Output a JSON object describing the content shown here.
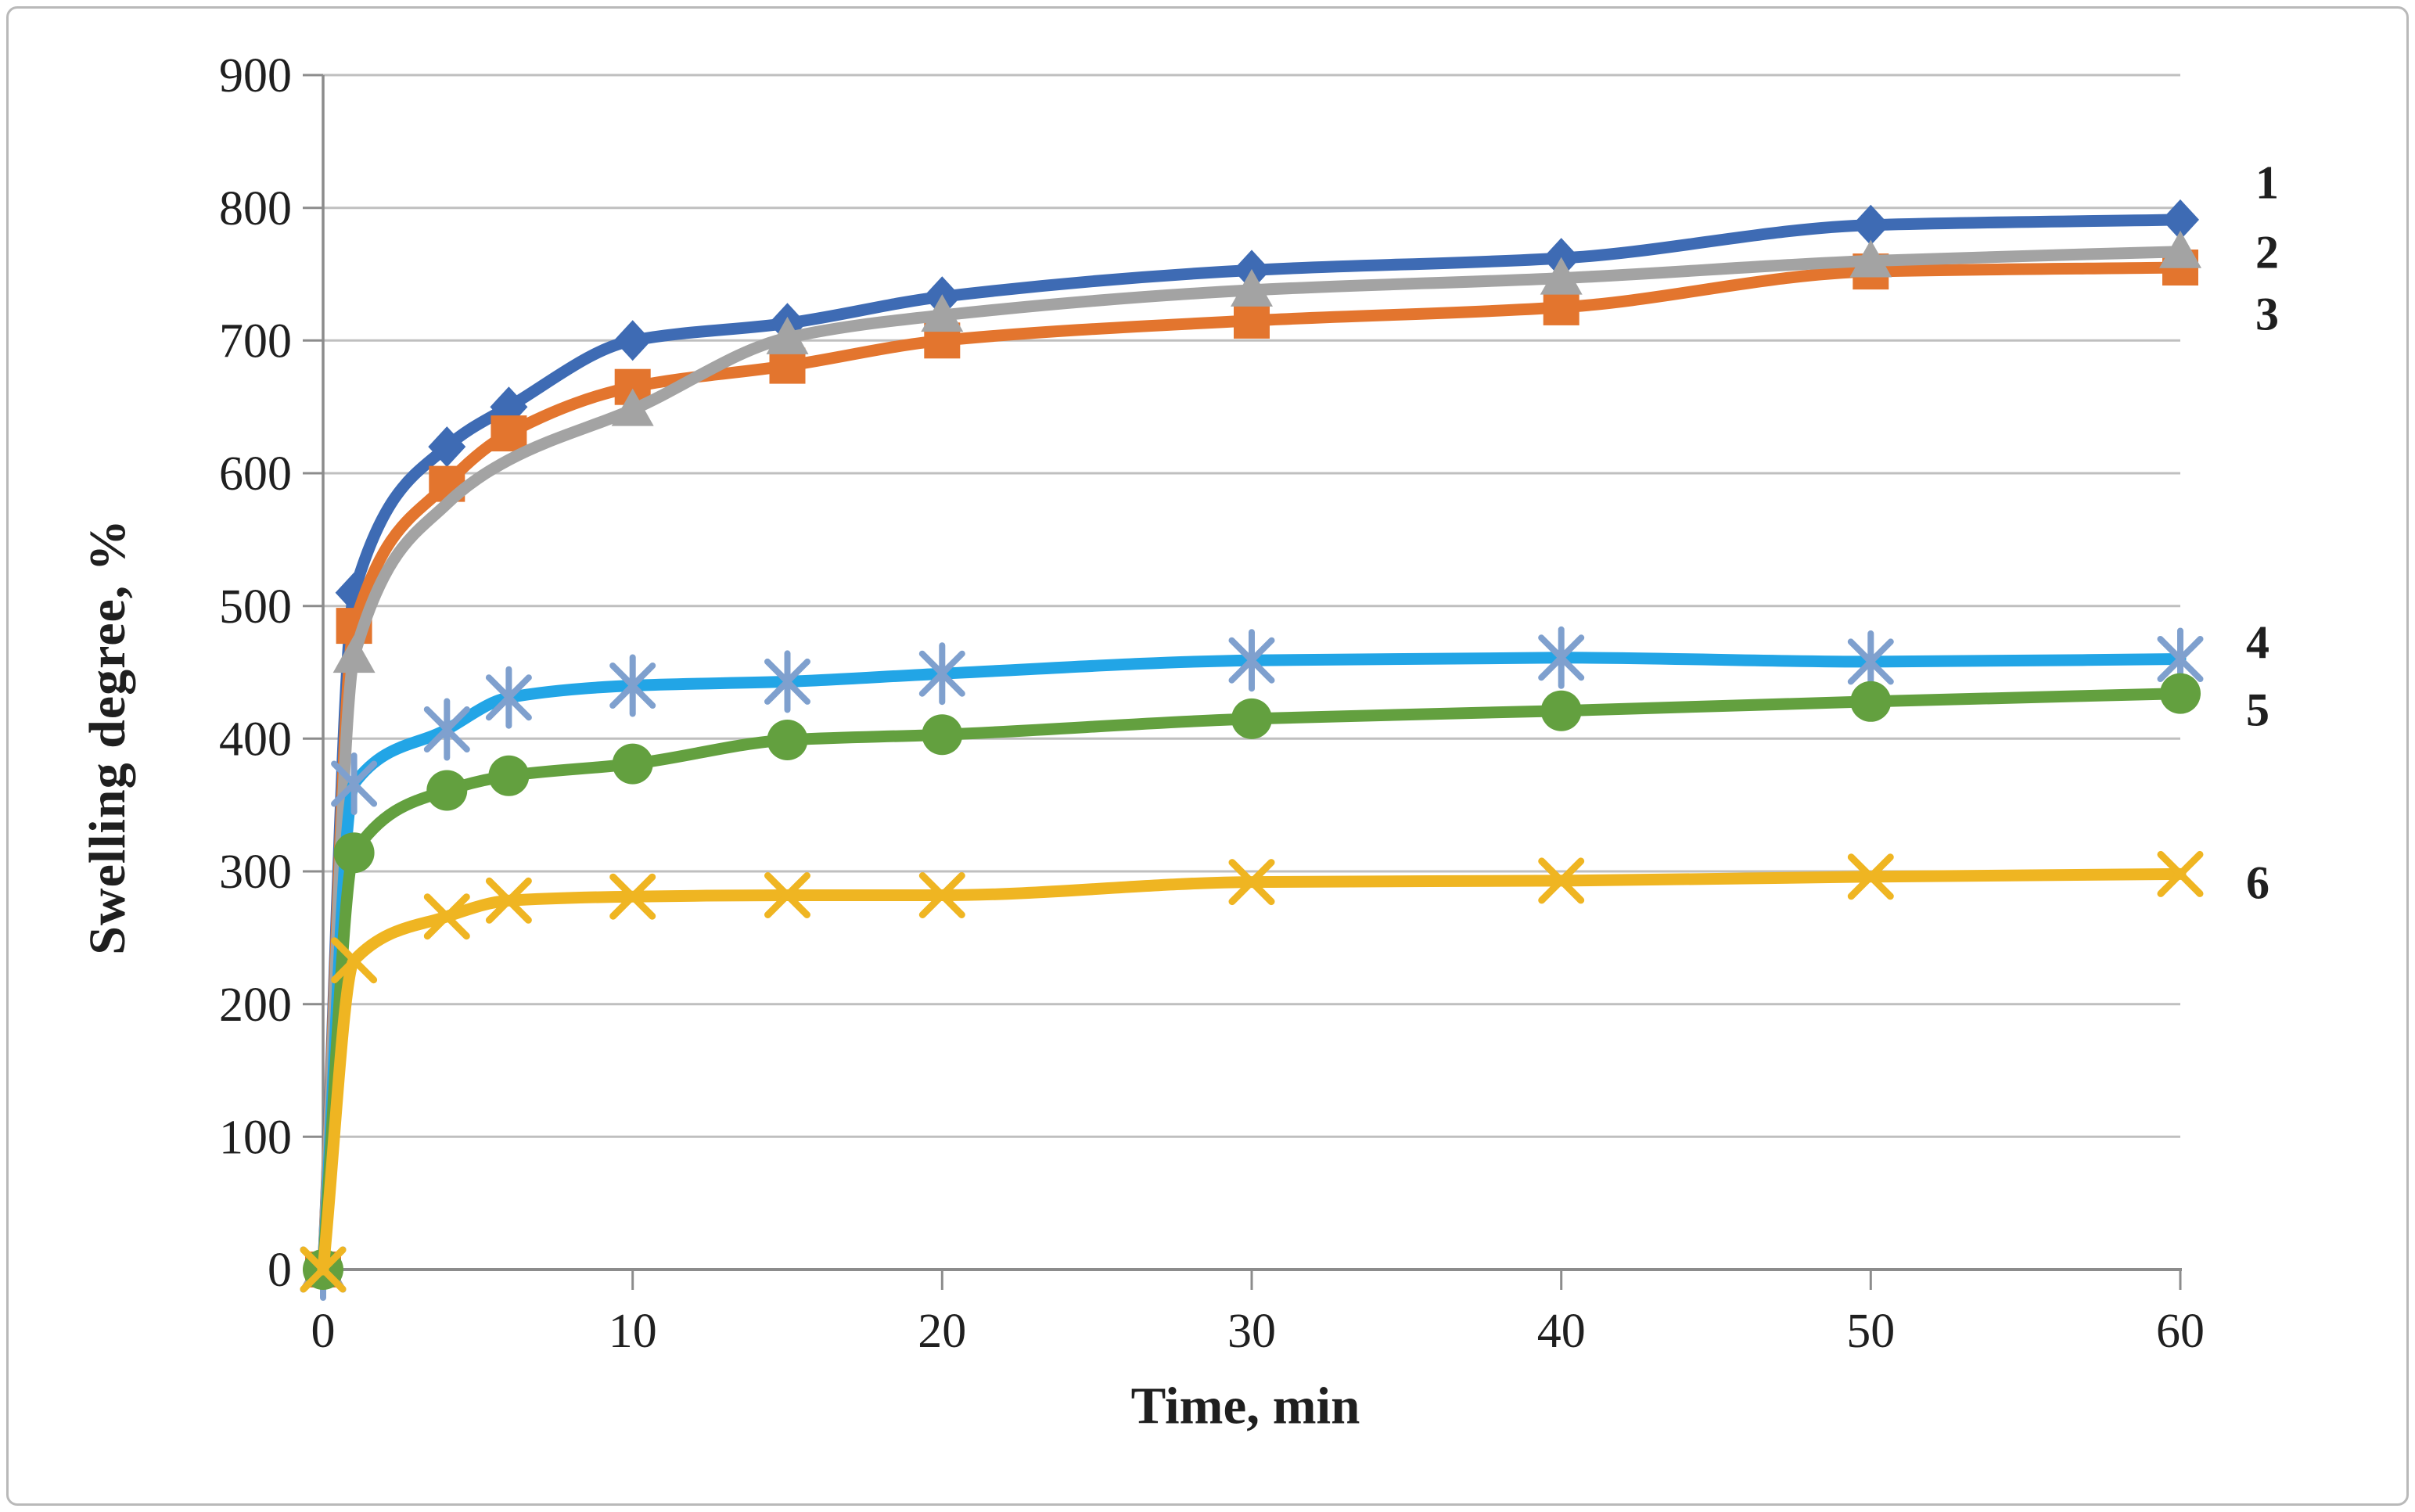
{
  "figure": {
    "background": "#ffffff",
    "border_color": "#b9b9b9"
  },
  "chart_data": {
    "type": "line",
    "title": "",
    "xlabel": "Time, min",
    "ylabel": "Swelling degree, %",
    "xlim": [
      0,
      60
    ],
    "ylim": [
      0,
      900
    ],
    "x_ticks": [
      0,
      10,
      20,
      30,
      40,
      50,
      60
    ],
    "y_ticks": [
      0,
      100,
      200,
      300,
      400,
      500,
      600,
      700,
      800,
      900
    ],
    "grid": "horizontal",
    "legend_position": "right-of-plot",
    "colors": {
      "gridline": "#bfbfbf",
      "axis": "#8c8c8c",
      "text": "#1f1f1f"
    },
    "series": [
      {
        "name": "1",
        "marker": "diamond",
        "color": "#3E6BB4",
        "points": [
          [
            0,
            0
          ],
          [
            1,
            510
          ],
          [
            4,
            620
          ],
          [
            6,
            650
          ],
          [
            10,
            700
          ],
          [
            15,
            713
          ],
          [
            20,
            733
          ],
          [
            30,
            753
          ],
          [
            40,
            762
          ],
          [
            50,
            787
          ],
          [
            60,
            791
          ]
        ]
      },
      {
        "name": "2",
        "marker": "triangle",
        "color": "#A3A3A3",
        "no_marker_x": [
          4,
          6
        ],
        "points": [
          [
            0,
            0
          ],
          [
            1,
            462
          ],
          [
            4,
            577
          ],
          [
            6,
            610
          ],
          [
            10,
            648
          ],
          [
            15,
            702
          ],
          [
            20,
            719
          ],
          [
            30,
            738
          ],
          [
            40,
            747
          ],
          [
            50,
            760
          ],
          [
            60,
            767
          ]
        ]
      },
      {
        "name": "3",
        "marker": "square",
        "color": "#E3752E",
        "points": [
          [
            0,
            0
          ],
          [
            1,
            485
          ],
          [
            4,
            592
          ],
          [
            6,
            630
          ],
          [
            10,
            665
          ],
          [
            15,
            681
          ],
          [
            20,
            700
          ],
          [
            30,
            715
          ],
          [
            40,
            725
          ],
          [
            50,
            752
          ],
          [
            60,
            755
          ]
        ]
      },
      {
        "name": "4",
        "marker": "asterisk",
        "color": "#22A5E6",
        "marker_color": "#7FA0CE",
        "points": [
          [
            0,
            0
          ],
          [
            1,
            366
          ],
          [
            4,
            407
          ],
          [
            6,
            431
          ],
          [
            10,
            440
          ],
          [
            15,
            443
          ],
          [
            20,
            449
          ],
          [
            30,
            459
          ],
          [
            40,
            461
          ],
          [
            50,
            458
          ],
          [
            60,
            460
          ]
        ]
      },
      {
        "name": "5",
        "marker": "circle",
        "color": "#63A03F",
        "points": [
          [
            0,
            0
          ],
          [
            1,
            314
          ],
          [
            4,
            361
          ],
          [
            6,
            372
          ],
          [
            10,
            381
          ],
          [
            15,
            399
          ],
          [
            20,
            403
          ],
          [
            30,
            415
          ],
          [
            40,
            421
          ],
          [
            50,
            428
          ],
          [
            60,
            434
          ]
        ]
      },
      {
        "name": "6",
        "marker": "x",
        "color": "#EFB522",
        "points": [
          [
            0,
            0
          ],
          [
            1,
            233
          ],
          [
            4,
            266
          ],
          [
            6,
            278
          ],
          [
            10,
            281
          ],
          [
            15,
            282
          ],
          [
            20,
            282
          ],
          [
            30,
            292
          ],
          [
            40,
            293
          ],
          [
            50,
            296
          ],
          [
            60,
            298
          ]
        ]
      }
    ],
    "draw_order": [
      0,
      2,
      1,
      3,
      4,
      5
    ],
    "legend_labels": [
      "1",
      "2",
      "3",
      "4",
      "5",
      "6"
    ]
  }
}
